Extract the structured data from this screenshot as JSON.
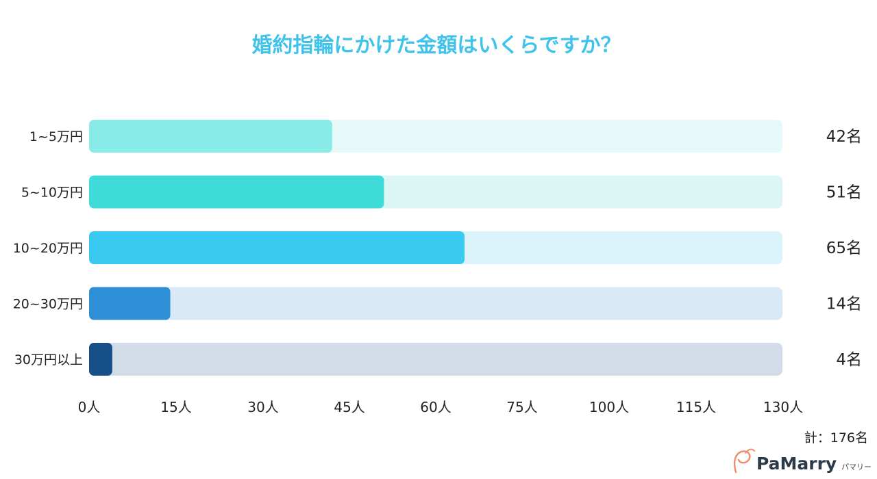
{
  "chart_data": {
    "type": "bar",
    "orientation": "horizontal",
    "title": "婚約指輪にかけた金額はいくらですか？",
    "categories": [
      "1~5万円",
      "5~10万円",
      "10~20万円",
      "20~30万円",
      "30万円以上"
    ],
    "values": [
      42,
      51,
      65,
      14,
      4
    ],
    "value_labels": [
      "42名",
      "51名",
      "65名",
      "14名",
      "4名"
    ],
    "bar_colors": [
      "#88ebe8",
      "#3fdbd8",
      "#3ac9f0",
      "#2f8fd6",
      "#164f88"
    ],
    "track_colors": [
      "#e6f9f9",
      "#dcf6f6",
      "#dbf3fb",
      "#d9e9f7",
      "#d1dce8"
    ],
    "x_ticks": [
      {
        "value": 0,
        "label": "0人"
      },
      {
        "value": 15,
        "label": "15人"
      },
      {
        "value": 30,
        "label": "30人"
      },
      {
        "value": 45,
        "label": "45人"
      },
      {
        "value": 60,
        "label": "60人"
      },
      {
        "value": 75,
        "label": "75人"
      },
      {
        "value": 100,
        "label": "100人"
      },
      {
        "value": 115,
        "label": "115人"
      },
      {
        "value": 130,
        "label": "130人"
      }
    ],
    "xlim": [
      0,
      130
    ],
    "total_label": "計：176名",
    "grid": false,
    "legend": "none"
  },
  "brand": {
    "name": "PaMarry",
    "sub": "パマリー",
    "colors": {
      "primary": "#2d3a4a",
      "accent": "#f08c6a"
    }
  },
  "title_color": "#3fc3ea"
}
